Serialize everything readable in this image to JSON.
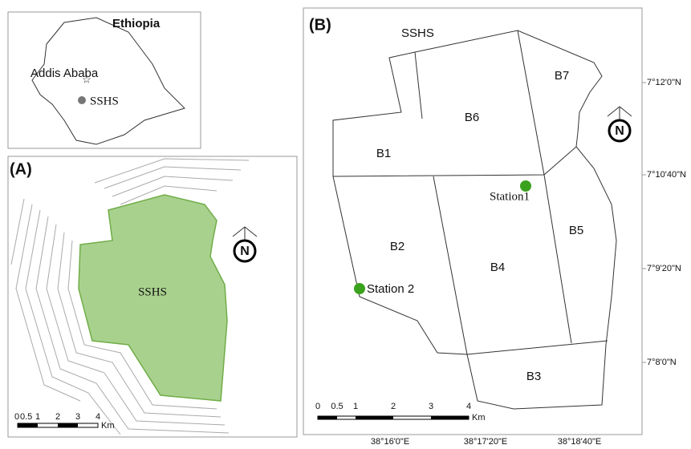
{
  "inset": {
    "country": "Ethiopia",
    "capital": "Addis Ababa",
    "site": "SSHS"
  },
  "panel_a": {
    "label": "(A)",
    "site": "SSHS",
    "north": "N",
    "scale": {
      "ticks": [
        "0",
        "0.5",
        "1",
        "2",
        "3",
        "4"
      ],
      "unit": "Km"
    }
  },
  "panel_b": {
    "label": "(B)",
    "site": "SSHS",
    "north": "N",
    "blocks": [
      "B1",
      "B2",
      "B3",
      "B4",
      "B5",
      "B6",
      "B7"
    ],
    "stations": [
      "Station1",
      "Station 2"
    ],
    "lat_labels": [
      "7°12'0\"N",
      "7°10'40\"N",
      "7°9'20\"N",
      "7°8'0\"N"
    ],
    "lon_labels": [
      "38°16'0\"E",
      "38°17'20\"E",
      "38°18'40\"E"
    ],
    "scale": {
      "ticks": [
        "0",
        "0.5",
        "1",
        "2",
        "3",
        "4"
      ],
      "unit": "Km"
    }
  }
}
